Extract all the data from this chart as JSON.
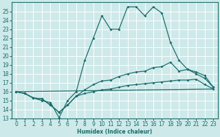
{
  "xlabel": "Humidex (Indice chaleur)",
  "bg_color": "#cee9e9",
  "grid_color": "#ffffff",
  "line_color": "#1a6b6b",
  "xlim": [
    -0.5,
    23.5
  ],
  "ylim": [
    13,
    26
  ],
  "xticks": [
    0,
    1,
    2,
    3,
    4,
    5,
    6,
    7,
    8,
    9,
    10,
    11,
    12,
    13,
    14,
    15,
    16,
    17,
    18,
    19,
    20,
    21,
    22,
    23
  ],
  "yticks": [
    13,
    14,
    15,
    16,
    17,
    18,
    19,
    20,
    21,
    22,
    23,
    24,
    25
  ],
  "line1_x": [
    0,
    1,
    2,
    3,
    4,
    5,
    6,
    7,
    8,
    9,
    10,
    11,
    12,
    13,
    14,
    15,
    16,
    17,
    18,
    19,
    20,
    21,
    22,
    23
  ],
  "line1_y": [
    16.0,
    15.8,
    15.3,
    15.0,
    14.8,
    13.1,
    15.0,
    16.0,
    19.5,
    22.0,
    24.5,
    23.0,
    23.0,
    25.5,
    25.5,
    24.5,
    25.5,
    24.8,
    21.5,
    19.5,
    18.5,
    18.0,
    17.5,
    16.5
  ],
  "line2_x": [
    0,
    1,
    2,
    3,
    4,
    5,
    6,
    7,
    8,
    9,
    10,
    11,
    12,
    13,
    14,
    15,
    16,
    17,
    18,
    19,
    20,
    21,
    22,
    23
  ],
  "line2_y": [
    16.0,
    15.8,
    15.3,
    15.2,
    14.5,
    13.7,
    14.5,
    15.5,
    16.2,
    16.8,
    17.2,
    17.3,
    17.7,
    18.0,
    18.2,
    18.3,
    18.7,
    18.8,
    19.3,
    18.3,
    18.5,
    18.2,
    17.8,
    16.5
  ],
  "line3_x": [
    0,
    1,
    2,
    3,
    4,
    5,
    6,
    7,
    8,
    9,
    10,
    11,
    12,
    13,
    14,
    15,
    16,
    17,
    18,
    19,
    20,
    21,
    22,
    23
  ],
  "line3_y": [
    16.0,
    15.8,
    15.3,
    15.2,
    14.5,
    13.7,
    14.5,
    15.5,
    15.8,
    16.0,
    16.2,
    16.3,
    16.5,
    16.7,
    16.8,
    16.9,
    17.0,
    17.1,
    17.2,
    17.3,
    17.3,
    17.4,
    16.8,
    16.3
  ],
  "line4_x": [
    0,
    23
  ],
  "line4_y": [
    16.0,
    16.3
  ]
}
